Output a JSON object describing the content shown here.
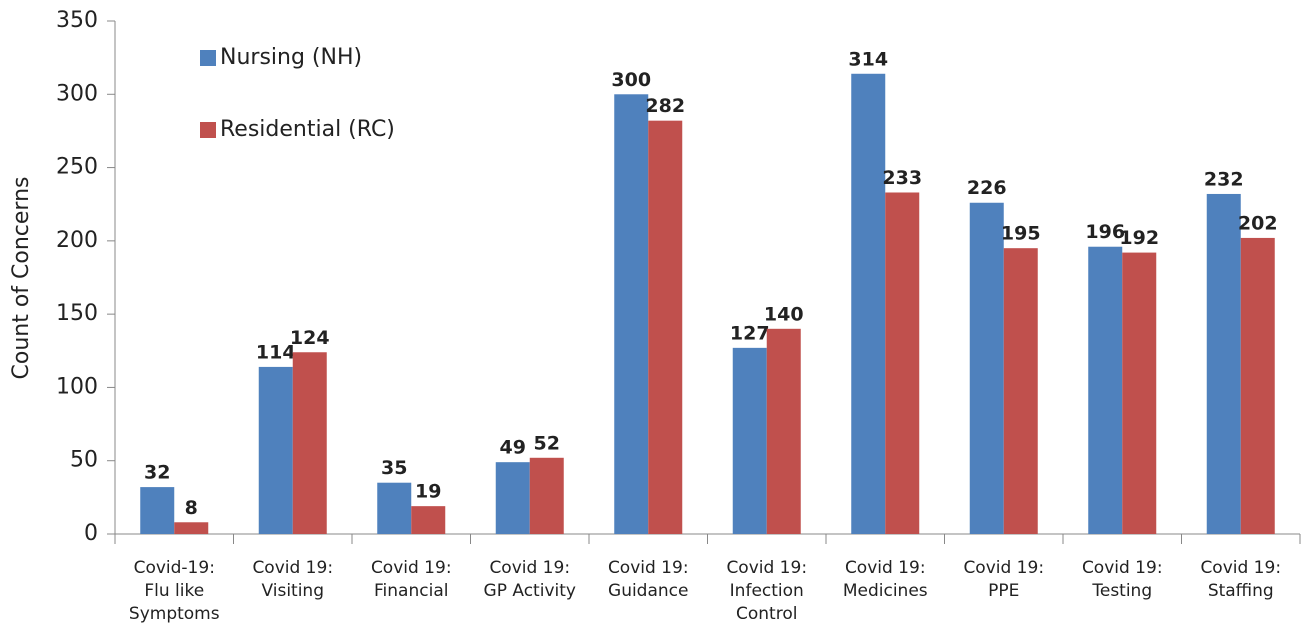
{
  "chart_data": {
    "type": "bar",
    "y_label": "Count of Concerns",
    "categories": [
      [
        "Covid-19:",
        "Flu like",
        "Symptoms"
      ],
      [
        "Covid 19:",
        "Visiting"
      ],
      [
        "Covid 19:",
        "Financial"
      ],
      [
        "Covid 19:",
        "GP Activity"
      ],
      [
        "Covid 19:",
        "Guidance"
      ],
      [
        "Covid 19:",
        "Infection",
        "Control"
      ],
      [
        "Covid 19:",
        "Medicines"
      ],
      [
        "Covid 19:",
        "PPE"
      ],
      [
        "Covid 19:",
        "Testing"
      ],
      [
        "Covid 19:",
        "Staffing"
      ]
    ],
    "series": [
      {
        "name": "Nursing (NH)",
        "color": "#4f81bd",
        "label_color": "#1f6fb5",
        "values": [
          32,
          114,
          35,
          49,
          300,
          127,
          314,
          226,
          196,
          232
        ]
      },
      {
        "name": "Residential (RC)",
        "color": "#c0504d",
        "label_color": "#e8383d",
        "values": [
          8,
          124,
          19,
          52,
          282,
          140,
          233,
          195,
          192,
          202
        ]
      }
    ],
    "ylim": [
      0,
      350
    ],
    "yticks": [
      0,
      50,
      100,
      150,
      200,
      250,
      300,
      350
    ],
    "grid": false,
    "legend": "upper left"
  }
}
